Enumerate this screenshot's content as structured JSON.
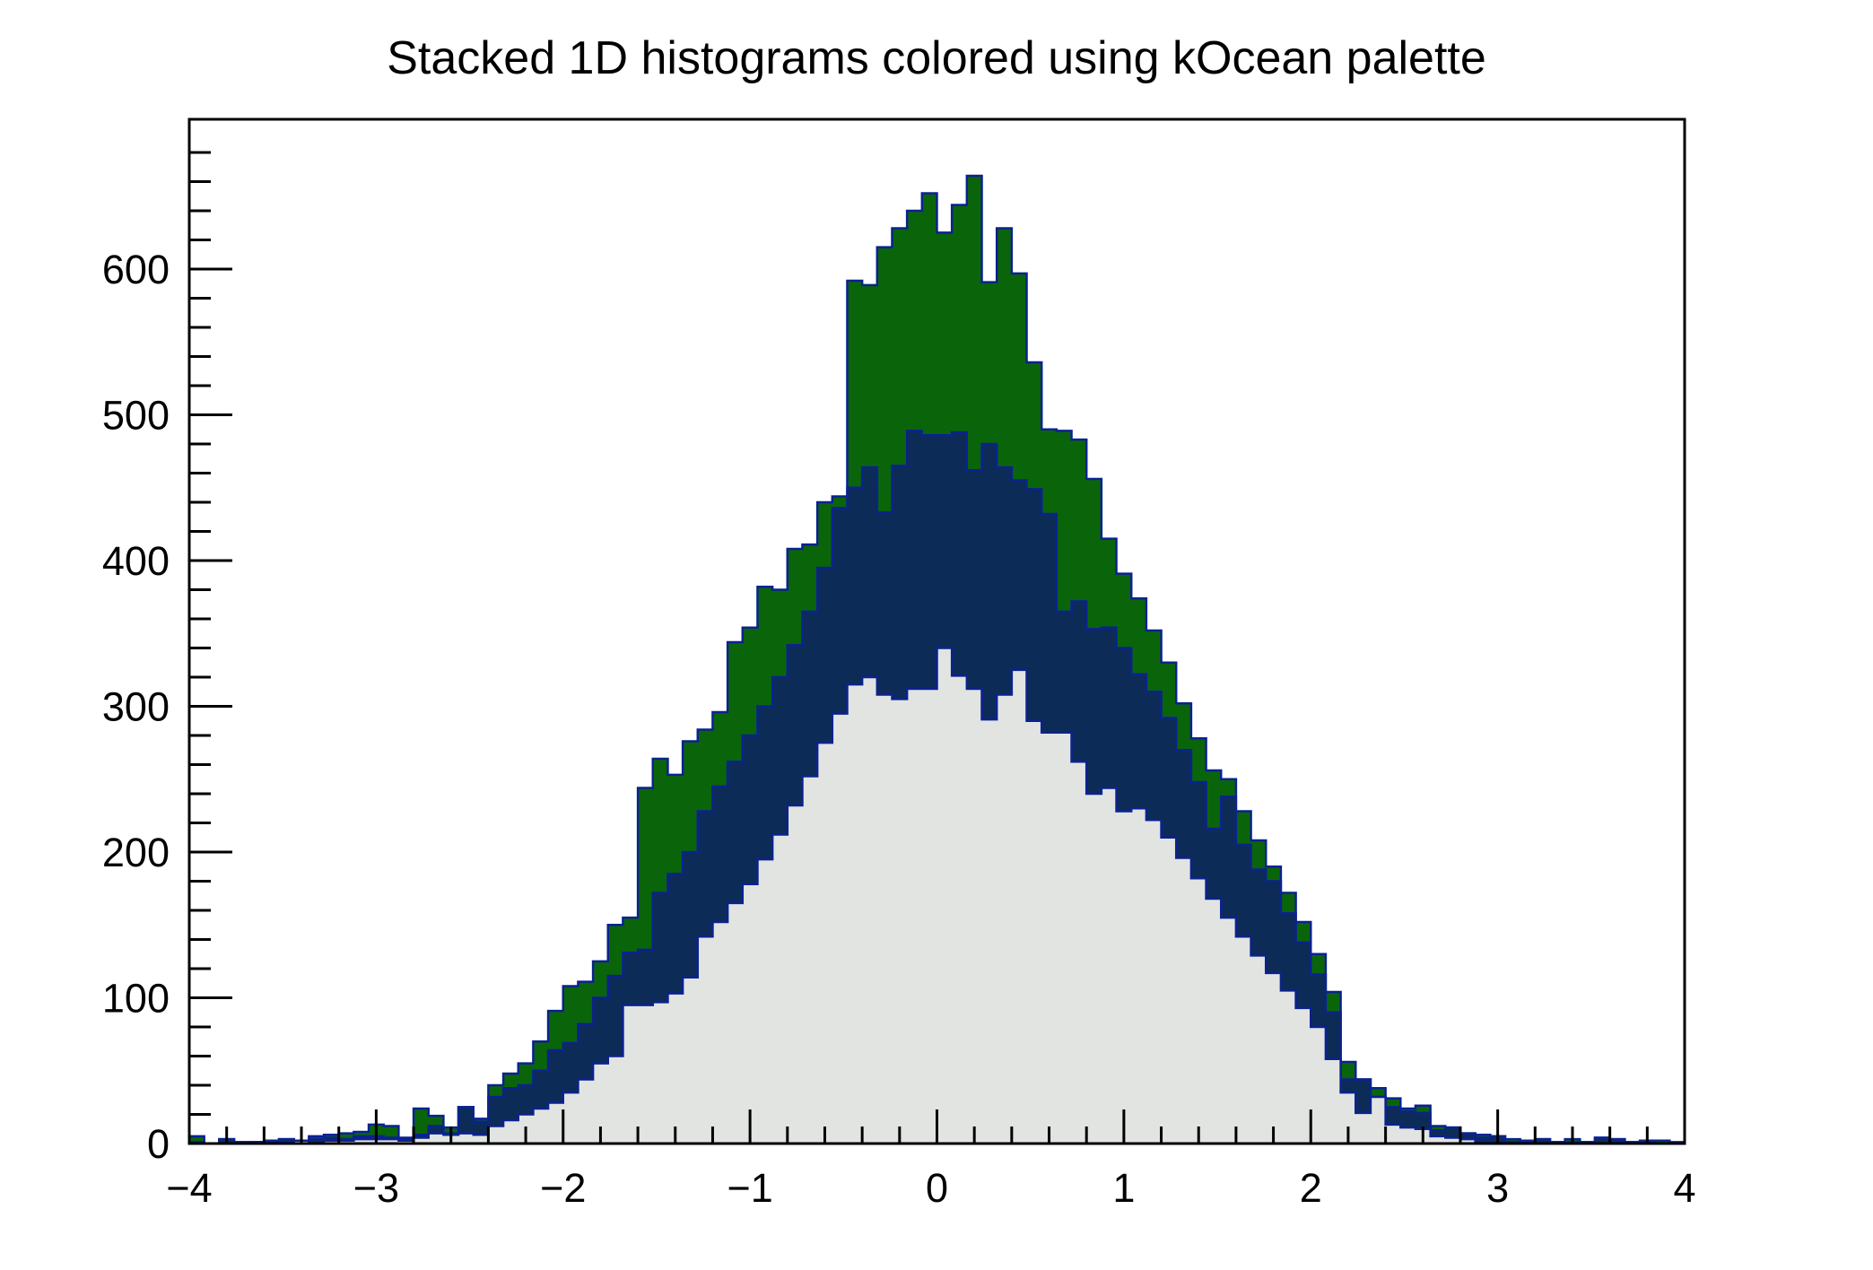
{
  "title": "Stacked 1D histograms colored using kOcean palette",
  "chart_data": {
    "type": "bar",
    "subtype": "stacked-1d-histogram",
    "title": "Stacked 1D histograms colored using kOcean palette",
    "xlabel": "",
    "ylabel": "",
    "xlim": [
      -4,
      4
    ],
    "ylim": [
      0,
      702.8
    ],
    "n_bins": 100,
    "bin_width": 0.08,
    "grid": false,
    "legend": "none",
    "x_tick_values": [
      -4,
      -3,
      -2,
      -1,
      0,
      1,
      2,
      3,
      4
    ],
    "x_tick_labels": [
      "−4",
      "−3",
      "−2",
      "−1",
      "0",
      "1",
      "2",
      "3",
      "4"
    ],
    "x_minor_step": 0.2,
    "y_tick_values": [
      0,
      100,
      200,
      300,
      400,
      500,
      600
    ],
    "y_tick_labels": [
      "0",
      "100",
      "200",
      "300",
      "400",
      "500",
      "600"
    ],
    "y_minor_step": 20,
    "frame_color": "#000000",
    "background_color": "#ffffff",
    "outline_color": "#0b2290",
    "series": [
      {
        "name": "hist-gray",
        "palette": "kOcean",
        "fill": "#e2e4e2",
        "counts": [
          0,
          0,
          0,
          0,
          1,
          1,
          1,
          2,
          1,
          2,
          2,
          3,
          3,
          3,
          2,
          4,
          7,
          6,
          7,
          6,
          12,
          16,
          20,
          24,
          28,
          35,
          44,
          55,
          60,
          95,
          95,
          97,
          103,
          114,
          142,
          152,
          165,
          178,
          195,
          212,
          232,
          252,
          275,
          295,
          315,
          320,
          308,
          305,
          312,
          312,
          340,
          321,
          312,
          291,
          308,
          325,
          290,
          282,
          282,
          262,
          240,
          244,
          228,
          230,
          222,
          210,
          196,
          182,
          168,
          155,
          142,
          129,
          117,
          105,
          93,
          80,
          58,
          35,
          21,
          32,
          13,
          11,
          10,
          5,
          4,
          3,
          1,
          1,
          1,
          1,
          0,
          0,
          0,
          0,
          0,
          1,
          0,
          0,
          0,
          0
        ]
      },
      {
        "name": "hist-navy",
        "palette": "kOcean",
        "fill": "#0d2b57",
        "counts": [
          1,
          0,
          3,
          1,
          0,
          0,
          2,
          0,
          2,
          2,
          1,
          2,
          2,
          1,
          1,
          2,
          5,
          1,
          18,
          9,
          20,
          22,
          20,
          26,
          36,
          34,
          38,
          45,
          55,
          36,
          38,
          75,
          82,
          86,
          86,
          93,
          97,
          102,
          105,
          108,
          110,
          113,
          120,
          141,
          135,
          144,
          125,
          160,
          177,
          174,
          146,
          167,
          150,
          189,
          156,
          130,
          159,
          150,
          83,
          110,
          113,
          110,
          112,
          92,
          88,
          82,
          74,
          66,
          48,
          83,
          63,
          59,
          63,
          53,
          45,
          36,
          32,
          9,
          23,
          0,
          12,
          11,
          11,
          4,
          7,
          4,
          3,
          4,
          0,
          1,
          3,
          1,
          1,
          1,
          4,
          2,
          1,
          1,
          0,
          0
        ]
      },
      {
        "name": "hist-green",
        "palette": "kOcean",
        "fill": "#0a650a",
        "counts": [
          4,
          0,
          0,
          0,
          0,
          1,
          0,
          0,
          2,
          2,
          4,
          3,
          8,
          8,
          1,
          18,
          7,
          4,
          0,
          2,
          8,
          10,
          15,
          20,
          27,
          39,
          29,
          25,
          35,
          24,
          111,
          92,
          68,
          76,
          56,
          51,
          82,
          74,
          82,
          60,
          66,
          46,
          45,
          8,
          142,
          125,
          182,
          163,
          151,
          166,
          139,
          156,
          202,
          111,
          164,
          142,
          87,
          58,
          124,
          111,
          103,
          61,
          51,
          52,
          42,
          38,
          32,
          30,
          40,
          12,
          23,
          20,
          10,
          14,
          14,
          14,
          14,
          12,
          0,
          6,
          6,
          2,
          5,
          3,
          0,
          0,
          2,
          0,
          2,
          0,
          0,
          0,
          2,
          0,
          0,
          0,
          0,
          1,
          2,
          1
        ]
      }
    ]
  }
}
